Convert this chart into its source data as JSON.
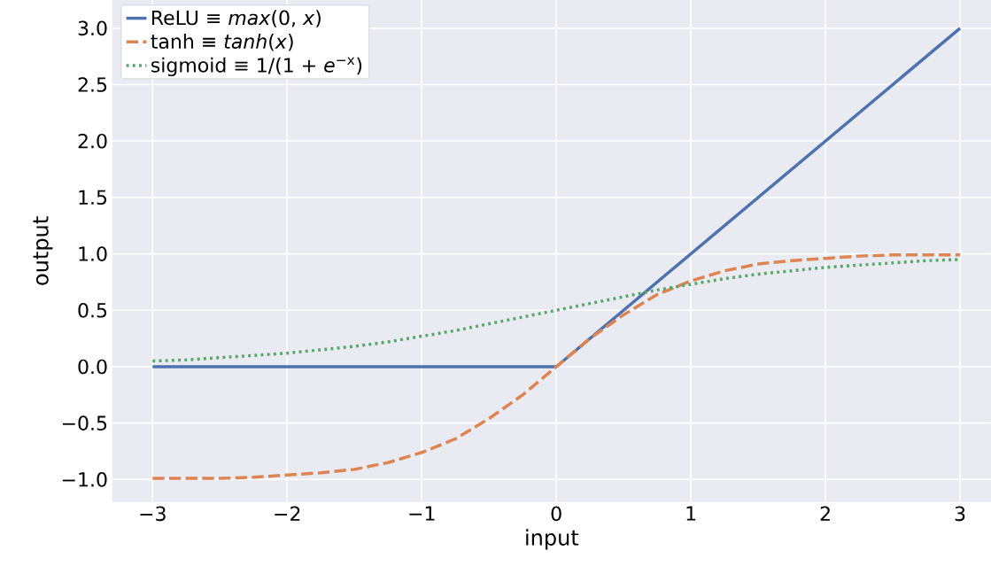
{
  "chart_data": {
    "type": "line",
    "xlabel": "input",
    "ylabel": "output",
    "xlim": [
      -3.3,
      3.23
    ],
    "ylim": [
      -1.2,
      3.25
    ],
    "xticks": [
      {
        "value": -3,
        "label": "−3"
      },
      {
        "value": -2,
        "label": "−2"
      },
      {
        "value": -1,
        "label": "−1"
      },
      0,
      1,
      2,
      3
    ],
    "yticks": [
      {
        "value": -1,
        "label": "−1.0"
      },
      {
        "value": -0.5,
        "label": "−0.5"
      },
      {
        "value": 0,
        "label": "0.0"
      },
      {
        "value": 0.5,
        "label": "0.5"
      },
      {
        "value": 1,
        "label": "1.0"
      },
      {
        "value": 1.5,
        "label": "1.5"
      },
      {
        "value": 2,
        "label": "2.0"
      },
      {
        "value": 2.5,
        "label": "2.5"
      },
      {
        "value": 3,
        "label": "3.0"
      }
    ],
    "grid": true,
    "legend": "top left",
    "series": [
      {
        "name": "ReLU ≡ *max*(0, *x*)",
        "color": "#4c72b0",
        "line_style": "solid",
        "x": [
          -3,
          0,
          3
        ],
        "values": [
          0,
          0,
          3
        ]
      },
      {
        "name": "tanh ≡ *tanh*(*x*)",
        "color": "#dd8452",
        "line_style": "dashed",
        "x": [
          -3,
          -2.75,
          -2.5,
          -2.25,
          -2,
          -1.75,
          -1.5,
          -1.25,
          -1,
          -0.75,
          -0.5,
          -0.25,
          0,
          0.25,
          0.5,
          0.75,
          1,
          1.25,
          1.5,
          1.75,
          2,
          2.25,
          2.5,
          2.75,
          3
        ],
        "values": [
          -0.99,
          -0.99,
          -0.99,
          -0.98,
          -0.96,
          -0.94,
          -0.91,
          -0.85,
          -0.76,
          -0.64,
          -0.46,
          -0.25,
          0,
          0.25,
          0.46,
          0.64,
          0.76,
          0.85,
          0.91,
          0.94,
          0.96,
          0.98,
          0.99,
          0.99,
          0.99
        ]
      },
      {
        "name": "sigmoid ≡ 1/(1 + *e*$^{−x}$)",
        "color": "#55a868",
        "line_style": "dotted",
        "x": [
          -3,
          -2.75,
          -2.5,
          -2.25,
          -2,
          -1.75,
          -1.5,
          -1.25,
          -1,
          -0.75,
          -0.5,
          -0.25,
          0,
          0.25,
          0.5,
          0.75,
          1,
          1.25,
          1.5,
          1.75,
          2,
          2.25,
          2.5,
          2.75,
          3
        ],
        "values": [
          0.05,
          0.06,
          0.08,
          0.1,
          0.12,
          0.15,
          0.18,
          0.22,
          0.27,
          0.32,
          0.38,
          0.44,
          0.5,
          0.56,
          0.62,
          0.68,
          0.73,
          0.78,
          0.82,
          0.85,
          0.88,
          0.9,
          0.92,
          0.94,
          0.95
        ]
      }
    ]
  }
}
